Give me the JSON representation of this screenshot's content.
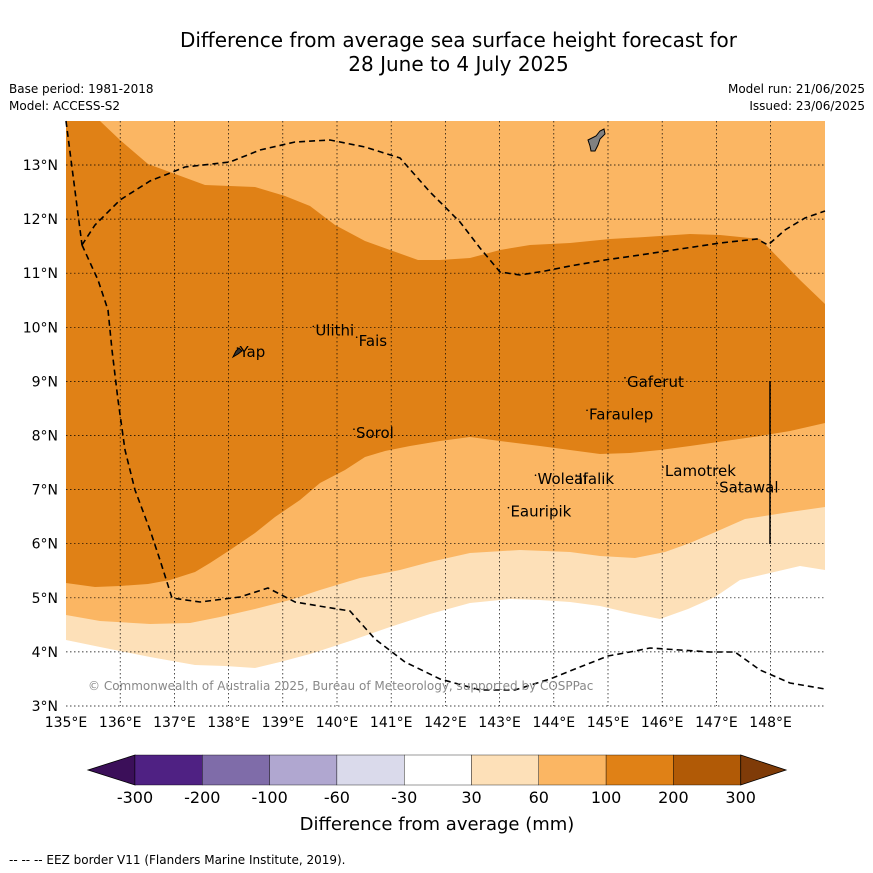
{
  "title": {
    "line1": "Difference from average sea surface height forecast for",
    "line2": "28 June to 4 July 2025"
  },
  "meta": {
    "base_period": "Base period: 1981-2018",
    "model": "Model: ACCESS-S2",
    "model_run": "Model run: 21/06/2025",
    "issued": "Issued: 23/06/2025"
  },
  "map": {
    "lon_range": [
      135,
      149
    ],
    "lat_range": [
      3,
      13.8
    ],
    "lon_ticks": [
      "135°E",
      "136°E",
      "137°E",
      "138°E",
      "139°E",
      "140°E",
      "141°E",
      "142°E",
      "143°E",
      "144°E",
      "145°E",
      "146°E",
      "147°E",
      "148°E"
    ],
    "lat_ticks": [
      "3°N",
      "4°N",
      "5°N",
      "6°N",
      "7°N",
      "8°N",
      "9°N",
      "10°N",
      "11°N",
      "12°N",
      "13°N"
    ],
    "gridlines": "dotted",
    "copyright": "© Commonwealth of Australia 2025, Bureau of Meteorology, supported by COSPPac",
    "places": [
      {
        "name": "Yap",
        "lon": 138.2,
        "lat": 9.45
      },
      {
        "name": "Ulithi",
        "lon": 139.6,
        "lat": 9.85
      },
      {
        "name": "Fais",
        "lon": 140.4,
        "lat": 9.65
      },
      {
        "name": "Sorol",
        "lon": 140.35,
        "lat": 7.95
      },
      {
        "name": "Gaferut",
        "lon": 145.35,
        "lat": 8.9
      },
      {
        "name": "Faraulep",
        "lon": 144.65,
        "lat": 8.3
      },
      {
        "name": "Woleai",
        "lon": 143.7,
        "lat": 7.1
      },
      {
        "name": "Ifalik",
        "lon": 144.45,
        "lat": 7.1
      },
      {
        "name": "Lamotrek",
        "lon": 146.05,
        "lat": 7.25
      },
      {
        "name": "Satawal",
        "lon": 147.05,
        "lat": 6.95
      },
      {
        "name": "Eauripik",
        "lon": 143.2,
        "lat": 6.5
      }
    ]
  },
  "colorbar": {
    "labels": [
      "-300",
      "-200",
      "-100",
      "-60",
      "-30",
      "30",
      "60",
      "100",
      "200",
      "300"
    ],
    "colors": [
      "#3b0f59",
      "#4f2183",
      "#7f6ca9",
      "#b0a7d0",
      "#dadaeb",
      "#ffffff",
      "#fde0b8",
      "#fbb663",
      "#e08116",
      "#b15a06",
      "#7f3b08"
    ],
    "title": "Difference from average (mm)"
  },
  "footnote": "--  --  -- EEZ border V11 (Flanders Marine Institute, 2019)."
}
